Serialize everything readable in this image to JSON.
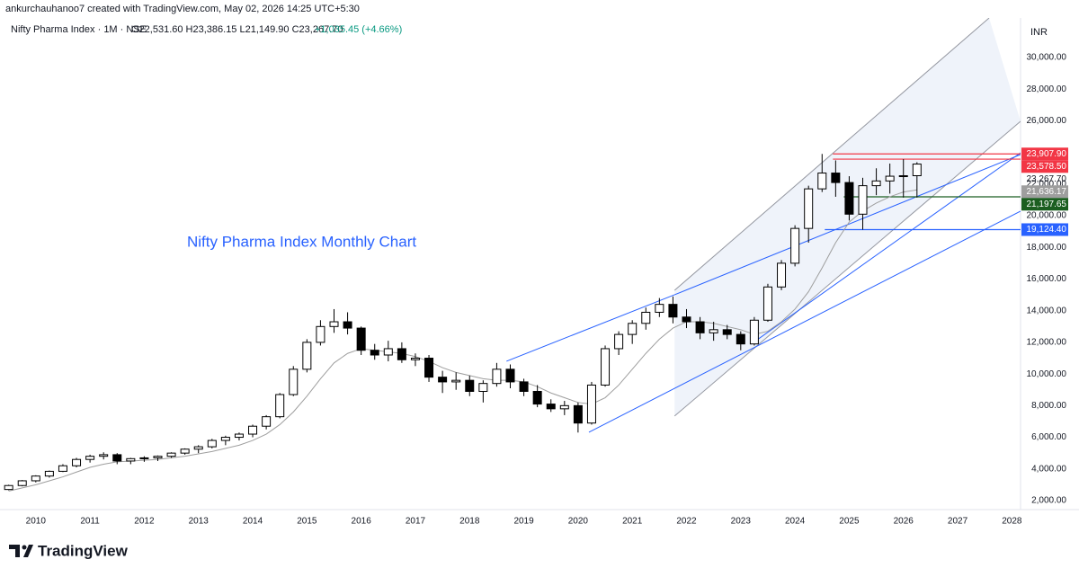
{
  "header": {
    "credit": "ankurchauhanoo7 created with TradingView.com, May 02, 2026 14:25 UTC+5:30",
    "symbol": "Nifty Pharma Index · 1M · NSE",
    "ohlc": "O22,531.60 H23,386.15 L21,149.90 C23,267.70",
    "change": "+1,035.45 (+4.66%)"
  },
  "chart_data": {
    "type": "candlestick",
    "annotation": "Nifty Pharma Index Monthly Chart",
    "currency": "INR",
    "up_color": "#ffffff",
    "down_color": "#000000",
    "ma_color": "#9e9e9e",
    "x": [
      2009.5,
      2009.75,
      2010,
      2010.25,
      2010.5,
      2010.75,
      2011,
      2011.25,
      2011.5,
      2011.75,
      2012,
      2012.25,
      2012.5,
      2012.75,
      2013,
      2013.25,
      2013.5,
      2013.75,
      2014,
      2014.25,
      2014.5,
      2014.75,
      2015,
      2015.25,
      2015.5,
      2015.75,
      2016,
      2016.25,
      2016.5,
      2016.75,
      2017,
      2017.25,
      2017.5,
      2017.75,
      2018,
      2018.25,
      2018.5,
      2018.75,
      2019,
      2019.25,
      2019.5,
      2019.75,
      2020,
      2020.25,
      2020.5,
      2020.75,
      2021,
      2021.25,
      2021.5,
      2021.75,
      2022,
      2022.25,
      2022.5,
      2022.75,
      2023,
      2023.25,
      2023.5,
      2023.75,
      2024,
      2024.25,
      2024.5,
      2024.75,
      2025,
      2025.25,
      2025.5,
      2025.75,
      2026,
      2026.25
    ],
    "open": [
      2700,
      2950,
      3250,
      3550,
      3850,
      4200,
      4600,
      4800,
      4900,
      4500,
      4650,
      4700,
      4800,
      5000,
      5250,
      5400,
      5800,
      6000,
      6200,
      6700,
      7300,
      8700,
      10300,
      12000,
      13000,
      13300,
      12900,
      11500,
      11200,
      11600,
      10900,
      11000,
      9800,
      9500,
      9600,
      8900,
      9400,
      10300,
      9500,
      8900,
      8100,
      7800,
      8000,
      6900,
      9300,
      11600,
      12500,
      13200,
      13900,
      14400,
      13600,
      13300,
      12600,
      12800,
      12500,
      11900,
      13400,
      15500,
      17000,
      19200,
      21700,
      22700,
      22100,
      20100,
      21900,
      22200,
      22500,
      22531.6
    ],
    "high": [
      3000,
      3300,
      3600,
      3900,
      4300,
      4700,
      4900,
      5050,
      5000,
      4700,
      4800,
      4850,
      5050,
      5300,
      5500,
      5900,
      6100,
      6300,
      6800,
      7400,
      8800,
      10500,
      12200,
      13400,
      14100,
      13900,
      13000,
      11900,
      12100,
      12000,
      11300,
      11200,
      10200,
      10100,
      9900,
      9600,
      10700,
      10600,
      9700,
      9300,
      8400,
      8300,
      8200,
      9500,
      11800,
      12700,
      13400,
      14200,
      14800,
      14900,
      14100,
      13600,
      13300,
      13100,
      12700,
      13600,
      15700,
      17200,
      19400,
      21900,
      23907.9,
      23500,
      22500,
      22400,
      23000,
      23300,
      23578.5,
      23386.15
    ],
    "low": [
      2650,
      2900,
      3150,
      3450,
      3800,
      4100,
      4400,
      4600,
      4300,
      4300,
      4450,
      4500,
      4700,
      4900,
      5000,
      5300,
      5500,
      5800,
      6000,
      6500,
      7200,
      8600,
      10100,
      11800,
      12600,
      12500,
      11200,
      10900,
      10800,
      10700,
      10500,
      9500,
      8800,
      9000,
      8600,
      8200,
      9200,
      9100,
      8600,
      7900,
      7600,
      7400,
      6300,
      6800,
      9200,
      11200,
      11900,
      12800,
      13600,
      13200,
      12900,
      12200,
      12100,
      12200,
      11500,
      11800,
      13300,
      15300,
      16800,
      18300,
      21500,
      21200,
      19700,
      19124.4,
      21300,
      21400,
      21150,
      21149.9
    ],
    "close": [
      2950,
      3250,
      3550,
      3850,
      4200,
      4600,
      4800,
      4900,
      4500,
      4650,
      4700,
      4800,
      5000,
      5250,
      5400,
      5800,
      6000,
      6200,
      6700,
      7300,
      8700,
      10300,
      12000,
      13000,
      13300,
      12900,
      11500,
      11200,
      11600,
      10900,
      11000,
      9800,
      9500,
      9600,
      8900,
      9400,
      10300,
      9500,
      8900,
      8100,
      7800,
      8000,
      6900,
      9300,
      11600,
      12500,
      13200,
      13900,
      14400,
      13600,
      13300,
      12600,
      12800,
      12500,
      11900,
      13400,
      15500,
      17000,
      19200,
      21700,
      22700,
      22100,
      20100,
      21900,
      22200,
      22500,
      22530,
      23267.7
    ],
    "ma": [
      2600,
      2800,
      3000,
      3250,
      3500,
      3800,
      4100,
      4300,
      4450,
      4500,
      4550,
      4600,
      4700,
      4800,
      4950,
      5100,
      5300,
      5500,
      5800,
      6200,
      6800,
      7600,
      8600,
      9700,
      10700,
      11300,
      11600,
      11500,
      11400,
      11300,
      11100,
      10800,
      10400,
      10100,
      9900,
      9700,
      9600,
      9600,
      9500,
      9200,
      8800,
      8500,
      8200,
      8100,
      8500,
      9300,
      10300,
      11300,
      12200,
      12900,
      13300,
      13300,
      13200,
      13000,
      12800,
      12500,
      12700,
      13300,
      14100,
      15200,
      16700,
      18300,
      19600,
      20300,
      20800,
      21200,
      21500,
      21636.17
    ],
    "xlim": [
      2009.34,
      2028.16
    ],
    "ylim": [
      1430,
      32500
    ],
    "xticks": [
      2010,
      2011,
      2012,
      2013,
      2014,
      2015,
      2016,
      2017,
      2018,
      2019,
      2020,
      2021,
      2022,
      2023,
      2024,
      2025,
      2026,
      2027,
      2028
    ],
    "yticks": [
      {
        "value": 2000,
        "label": "2,000.00"
      },
      {
        "value": 4000,
        "label": "4,000.00"
      },
      {
        "value": 6000,
        "label": "6,000.00"
      },
      {
        "value": 8000,
        "label": "8,000.00"
      },
      {
        "value": 10000,
        "label": "10,000.00"
      },
      {
        "value": 12000,
        "label": "12,000.00"
      },
      {
        "value": 14000,
        "label": "14,000.00"
      },
      {
        "value": 16000,
        "label": "16,000.00"
      },
      {
        "value": 18000,
        "label": "18,000.00"
      },
      {
        "value": 20000,
        "label": "20,000.00"
      },
      {
        "value": 22000,
        "label": "22,000.00"
      },
      {
        "value": 26000,
        "label": "26,000.00"
      },
      {
        "value": 28000,
        "label": "28,000.00"
      },
      {
        "value": 30000,
        "label": "30,000.00"
      }
    ],
    "price_labels": [
      {
        "value": 23907.9,
        "label": "23,907.90",
        "color": "#f23645",
        "from": 2024.7
      },
      {
        "value": 23578.5,
        "label": "23,578.50",
        "color": "#f23645",
        "from": 2024.7
      },
      {
        "value": 23267.7,
        "label": "23,267.70",
        "color": "none"
      },
      {
        "value": 21636.17,
        "label": "21,636.17",
        "color": "#9e9e9e"
      },
      {
        "value": 21197.65,
        "label": "21,197.65",
        "color": "#1b5e20",
        "from": 2024.9
      },
      {
        "value": 19124.4,
        "label": "19,124.40",
        "color": "#2962ff",
        "from": 2024.55
      }
    ],
    "channel": {
      "color": "#9598a1",
      "fill": "#e8eef8",
      "upper": {
        "x": [
          2021.78,
          2027.58
        ],
        "y": [
          15290,
          32500
        ]
      },
      "lower": {
        "x": [
          2021.78,
          2028.16
        ],
        "y": [
          7343,
          25968
        ]
      }
    },
    "trendlines": [
      {
        "x": [
          2018.68,
          2021.78
        ],
        "y": [
          10807,
          15008
        ],
        "color": "#2962ff"
      },
      {
        "x": [
          2020.2,
          2028.16
        ],
        "y": [
          6320,
          20290
        ],
        "color": "#2962ff"
      },
      {
        "x": [
          2021.78,
          2028.16
        ],
        "y": [
          15008,
          23867
        ],
        "color": "#2962ff"
      },
      {
        "x": [
          2023.19,
          2028.16
        ],
        "y": [
          11885,
          23981
        ],
        "color": "#2962ff"
      }
    ]
  },
  "footer": {
    "brand": "TradingView"
  }
}
